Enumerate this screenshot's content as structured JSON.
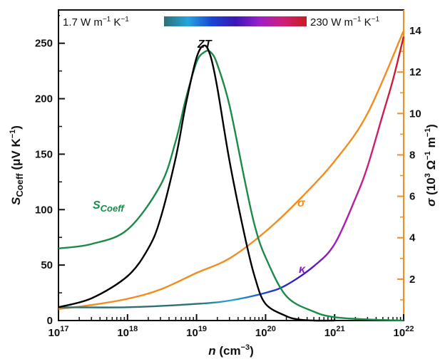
{
  "chart_data": {
    "type": "line",
    "xlabel": {
      "var": "n",
      "unit": "(cm",
      "exp": "−3",
      "close": ")"
    },
    "ylabel_left": {
      "var": "S",
      "sub": "Coeff",
      "unit": "(μV K",
      "exp": "−1",
      "close": ")"
    },
    "ylabel_right": {
      "var": "σ",
      "unit1": "(10",
      "exp1": "3",
      "unit2": "Ω",
      "exp2": "−1",
      "unit3": "m",
      "exp3": "−1",
      "close": ")"
    },
    "x_scale": "log",
    "xlim": [
      1e+17,
      1e+22
    ],
    "ylim_left": [
      0,
      280
    ],
    "ylim_right": [
      0,
      15
    ],
    "x_ticks": [
      {
        "base": "10",
        "exp": "17"
      },
      {
        "base": "10",
        "exp": "18"
      },
      {
        "base": "10",
        "exp": "19"
      },
      {
        "base": "10",
        "exp": "20"
      },
      {
        "base": "10",
        "exp": "21"
      },
      {
        "base": "10",
        "exp": "22"
      }
    ],
    "y_ticks_left": [
      0,
      50,
      100,
      150,
      200,
      250
    ],
    "y_ticks_right": [
      2,
      4,
      6,
      8,
      10,
      12,
      14
    ],
    "grid": false,
    "colorbar": {
      "min_label": {
        "val": "1.7 W m",
        "exp1": "−1",
        "unit2": " K",
        "exp2": "−1"
      },
      "max_label": {
        "val": "230 W m",
        "exp1": "−1",
        "unit2": " K",
        "exp2": "−1"
      },
      "colors": [
        "#2f6f73",
        "#25a6dc",
        "#1a45d6",
        "#3a16b5",
        "#9a1fc9",
        "#cf1f7a",
        "#c81e1e"
      ]
    },
    "series": [
      {
        "name": "S_Coeff",
        "label": "S",
        "label_sub": "Coeff",
        "axis": "left",
        "color": "#1a8a4a",
        "x": [
          1e+17,
          3e+17,
          1e+18,
          3e+18,
          5e+18,
          7e+18,
          1e+19,
          1.3e+19,
          1.6e+19,
          2e+19,
          3e+19,
          5e+19,
          7e+19,
          1e+20,
          2e+20,
          5e+20,
          1e+21,
          3e+21,
          1e+22
        ],
        "y": [
          65,
          69,
          82,
          122,
          162,
          200,
          233,
          242,
          242,
          231,
          194,
          126,
          85,
          57,
          22,
          8,
          3,
          1,
          0
        ]
      },
      {
        "name": "ZT",
        "label": "ZT",
        "axis": "left",
        "color": "#000000",
        "x": [
          1e+17,
          3e+17,
          1e+18,
          2e+18,
          3e+18,
          5e+18,
          7e+18,
          1e+19,
          1.3e+19,
          1.6e+19,
          2e+19,
          3e+19,
          5e+19,
          7e+19,
          1e+20,
          2e+20,
          3e+20,
          5e+20,
          1e+21
        ],
        "y": [
          12,
          20,
          40,
          65,
          92,
          147,
          195,
          237,
          248,
          238,
          210,
          144,
          76,
          39,
          15,
          4,
          1,
          0,
          0
        ]
      },
      {
        "name": "σ",
        "label": "σ",
        "axis": "right",
        "color": "#f28c1e",
        "x": [
          1e+17,
          3e+17,
          1e+18,
          3e+18,
          1e+19,
          3e+19,
          1e+20,
          3e+20,
          1e+21,
          3e+21,
          1e+22
        ],
        "y": [
          0.55,
          0.75,
          1.05,
          1.5,
          2.3,
          3.0,
          4.3,
          5.8,
          7.7,
          10.0,
          14.0
        ]
      },
      {
        "name": "κ",
        "label": "κ",
        "axis": "left",
        "color_ramp": true,
        "x": [
          1e+17,
          1e+18,
          1e+19,
          3e+19,
          1e+20,
          2e+20,
          5e+20,
          1e+21,
          2e+21,
          3e+21,
          5e+21,
          7e+21,
          1e+22
        ],
        "y": [
          12,
          12,
          15,
          18,
          25,
          32,
          49,
          69,
          110,
          139,
          186,
          217,
          256
        ]
      }
    ]
  },
  "colors": {
    "axis_left": "#111111",
    "axis_right": "#f28c1e"
  }
}
